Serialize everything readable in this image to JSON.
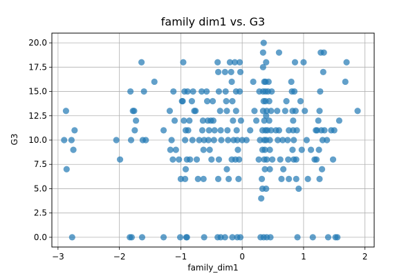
{
  "chart_data": {
    "type": "scatter",
    "title": "family dim1 vs. G3",
    "xlabel": "family_dim1",
    "ylabel": "G3",
    "xlim": [
      -3.1,
      2.15
    ],
    "ylim": [
      -1.0,
      21.0
    ],
    "xticks": [
      -3,
      -2,
      -1,
      0,
      1,
      2
    ],
    "xtick_labels": [
      "−3",
      "−2",
      "−1",
      "0",
      "1",
      "2"
    ],
    "yticks": [
      0.0,
      2.5,
      5.0,
      7.5,
      10.0,
      12.5,
      15.0,
      17.5,
      20.0
    ],
    "ytick_labels": [
      "0.0",
      "2.5",
      "5.0",
      "7.5",
      "10.0",
      "12.5",
      "15.0",
      "17.5",
      "20.0"
    ],
    "grid": true,
    "point_color": "#1f77b4",
    "point_alpha": 0.7,
    "series": [
      {
        "points": [
          [
            -2.9,
            10
          ],
          [
            -2.87,
            13
          ],
          [
            -2.86,
            7
          ],
          [
            -2.78,
            10
          ],
          [
            -2.77,
            0
          ],
          [
            -2.75,
            9
          ],
          [
            -2.73,
            11
          ],
          [
            -2.05,
            10
          ],
          [
            -1.99,
            8
          ],
          [
            -1.83,
            0
          ],
          [
            -1.81,
            10
          ],
          [
            -1.8,
            0
          ],
          [
            -1.82,
            15
          ],
          [
            -1.78,
            13
          ],
          [
            -1.76,
            13
          ],
          [
            -1.75,
            11
          ],
          [
            -1.73,
            12
          ],
          [
            -1.64,
            18
          ],
          [
            -1.6,
            15
          ],
          [
            -1.62,
            10
          ],
          [
            -1.57,
            10
          ],
          [
            -1.63,
            0
          ],
          [
            -1.43,
            16
          ],
          [
            -1.28,
            11
          ],
          [
            -1.28,
            0
          ],
          [
            -1.18,
            13
          ],
          [
            -1.17,
            9
          ],
          [
            -1.15,
            10
          ],
          [
            -1.13,
            8
          ],
          [
            -1.12,
            15
          ],
          [
            -1.1,
            12
          ],
          [
            -1.08,
            9
          ],
          [
            -1.03,
            8
          ],
          [
            -1.0,
            6
          ],
          [
            -1.01,
            0
          ],
          [
            -0.98,
            14
          ],
          [
            -0.96,
            18
          ],
          [
            -0.97,
            14
          ],
          [
            -0.94,
            15
          ],
          [
            -0.95,
            12
          ],
          [
            -0.93,
            10
          ],
          [
            -0.92,
            11
          ],
          [
            -0.9,
            8
          ],
          [
            -0.92,
            7
          ],
          [
            -0.93,
            6
          ],
          [
            -0.91,
            0
          ],
          [
            -0.9,
            0
          ],
          [
            -0.89,
            15
          ],
          [
            -0.88,
            11
          ],
          [
            -0.86,
            12
          ],
          [
            -0.85,
            8
          ],
          [
            -0.82,
            14
          ],
          [
            -0.8,
            15
          ],
          [
            -0.81,
            10
          ],
          [
            -0.78,
            13
          ],
          [
            -0.76,
            13
          ],
          [
            -0.74,
            8
          ],
          [
            -0.72,
            6
          ],
          [
            -0.7,
            10
          ],
          [
            -0.66,
            15
          ],
          [
            -0.65,
            11
          ],
          [
            -0.64,
            12
          ],
          [
            -0.63,
            9
          ],
          [
            -0.62,
            10
          ],
          [
            -0.63,
            6
          ],
          [
            -0.62,
            0
          ],
          [
            -0.58,
            15
          ],
          [
            -0.57,
            14
          ],
          [
            -0.56,
            12
          ],
          [
            -0.55,
            10
          ],
          [
            -0.54,
            11
          ],
          [
            -0.53,
            9
          ],
          [
            -0.51,
            12
          ],
          [
            -0.5,
            8
          ],
          [
            -0.48,
            14
          ],
          [
            -0.47,
            12
          ],
          [
            -0.46,
            10
          ],
          [
            -0.45,
            11
          ],
          [
            -0.4,
            18
          ],
          [
            -0.39,
            17
          ],
          [
            -0.38,
            15
          ],
          [
            -0.36,
            13
          ],
          [
            -0.35,
            11
          ],
          [
            -0.34,
            10
          ],
          [
            -0.39,
            6
          ],
          [
            -0.38,
            8
          ],
          [
            -0.4,
            0
          ],
          [
            -0.35,
            0
          ],
          [
            -0.28,
            17
          ],
          [
            -0.27,
            15
          ],
          [
            -0.26,
            14
          ],
          [
            -0.25,
            13
          ],
          [
            -0.24,
            11
          ],
          [
            -0.23,
            10
          ],
          [
            -0.25,
            7
          ],
          [
            -0.22,
            6
          ],
          [
            -0.28,
            0
          ],
          [
            -0.2,
            18
          ],
          [
            -0.18,
            17
          ],
          [
            -0.17,
            16
          ],
          [
            -0.16,
            14
          ],
          [
            -0.15,
            12
          ],
          [
            -0.14,
            10
          ],
          [
            -0.17,
            8
          ],
          [
            -0.16,
            0
          ],
          [
            -0.12,
            18
          ],
          [
            -0.1,
            15
          ],
          [
            -0.1,
            13
          ],
          [
            -0.09,
            11
          ],
          [
            -0.08,
            10
          ],
          [
            -0.07,
            9
          ],
          [
            -0.11,
            8
          ],
          [
            -0.06,
            6
          ],
          [
            -0.08,
            0
          ],
          [
            -0.04,
            18
          ],
          [
            -0.03,
            17
          ],
          [
            -0.04,
            15
          ],
          [
            -0.02,
            12
          ],
          [
            0.0,
            10
          ],
          [
            -0.05,
            8
          ],
          [
            -0.03,
            0
          ],
          [
            0.07,
            10
          ],
          [
            0.13,
            11
          ],
          [
            0.18,
            16
          ],
          [
            0.2,
            13
          ],
          [
            0.23,
            12
          ],
          [
            0.27,
            8
          ],
          [
            0.28,
            15
          ],
          [
            0.29,
            10
          ],
          [
            0.3,
            0
          ],
          [
            0.31,
            4
          ],
          [
            0.32,
            6
          ],
          [
            0.33,
            5
          ],
          [
            0.33,
            9
          ],
          [
            0.33,
            11
          ],
          [
            0.34,
            13
          ],
          [
            0.34,
            15
          ],
          [
            0.34,
            17.5
          ],
          [
            0.34,
            19
          ],
          [
            0.35,
            20
          ],
          [
            0.35,
            0
          ],
          [
            0.35,
            14
          ],
          [
            0.36,
            16
          ],
          [
            0.36,
            12
          ],
          [
            0.36,
            10
          ],
          [
            0.36,
            8
          ],
          [
            0.37,
            7
          ],
          [
            0.37,
            9
          ],
          [
            0.38,
            11
          ],
          [
            0.38,
            15
          ],
          [
            0.38,
            14
          ],
          [
            0.38,
            16
          ],
          [
            0.39,
            18
          ],
          [
            0.39,
            12.5
          ],
          [
            0.39,
            10
          ],
          [
            0.39,
            5
          ],
          [
            0.4,
            0
          ],
          [
            0.4,
            8
          ],
          [
            0.4,
            13
          ],
          [
            0.41,
            11
          ],
          [
            0.42,
            15
          ],
          [
            0.43,
            16
          ],
          [
            0.44,
            14
          ],
          [
            0.44,
            12
          ],
          [
            0.45,
            10
          ],
          [
            0.45,
            9
          ],
          [
            0.45,
            7
          ],
          [
            0.46,
            0
          ],
          [
            0.47,
            13
          ],
          [
            0.47,
            11
          ],
          [
            0.48,
            15
          ],
          [
            0.49,
            8
          ],
          [
            0.55,
            11
          ],
          [
            0.57,
            13
          ],
          [
            0.58,
            10
          ],
          [
            0.6,
            11
          ],
          [
            0.6,
            19
          ],
          [
            0.62,
            8
          ],
          [
            0.64,
            6
          ],
          [
            0.66,
            10
          ],
          [
            0.67,
            7
          ],
          [
            0.7,
            13
          ],
          [
            0.72,
            14
          ],
          [
            0.74,
            10
          ],
          [
            0.75,
            8
          ],
          [
            0.76,
            6
          ],
          [
            0.76,
            11
          ],
          [
            0.8,
            16
          ],
          [
            0.81,
            15
          ],
          [
            0.82,
            13
          ],
          [
            0.82,
            9
          ],
          [
            0.83,
            12
          ],
          [
            0.83,
            11
          ],
          [
            0.84,
            10
          ],
          [
            0.84,
            8
          ],
          [
            0.85,
            15
          ],
          [
            0.86,
            18
          ],
          [
            0.87,
            13
          ],
          [
            0.88,
            8
          ],
          [
            0.88,
            6
          ],
          [
            0.89,
            11
          ],
          [
            0.9,
            0
          ],
          [
            0.92,
            5
          ],
          [
            0.95,
            14
          ],
          [
            0.97,
            9
          ],
          [
            1.0,
            18
          ],
          [
            1.02,
            13
          ],
          [
            1.05,
            10
          ],
          [
            1.07,
            6
          ],
          [
            1.12,
            9
          ],
          [
            1.15,
            0
          ],
          [
            1.18,
            8
          ],
          [
            1.2,
            11
          ],
          [
            1.21,
            8
          ],
          [
            1.22,
            11
          ],
          [
            1.24,
            12
          ],
          [
            1.25,
            9
          ],
          [
            1.26,
            6
          ],
          [
            1.26,
            13
          ],
          [
            1.27,
            15
          ],
          [
            1.28,
            19
          ],
          [
            1.29,
            11
          ],
          [
            1.3,
            7
          ],
          [
            1.31,
            10
          ],
          [
            1.32,
            17
          ],
          [
            1.33,
            19
          ],
          [
            1.34,
            11
          ],
          [
            1.38,
            10
          ],
          [
            1.4,
            0
          ],
          [
            1.45,
            11
          ],
          [
            1.48,
            8
          ],
          [
            1.5,
            11
          ],
          [
            1.52,
            0
          ],
          [
            1.55,
            0
          ],
          [
            1.58,
            12
          ],
          [
            1.68,
            16
          ],
          [
            1.7,
            18
          ],
          [
            1.88,
            13
          ]
        ]
      }
    ]
  }
}
